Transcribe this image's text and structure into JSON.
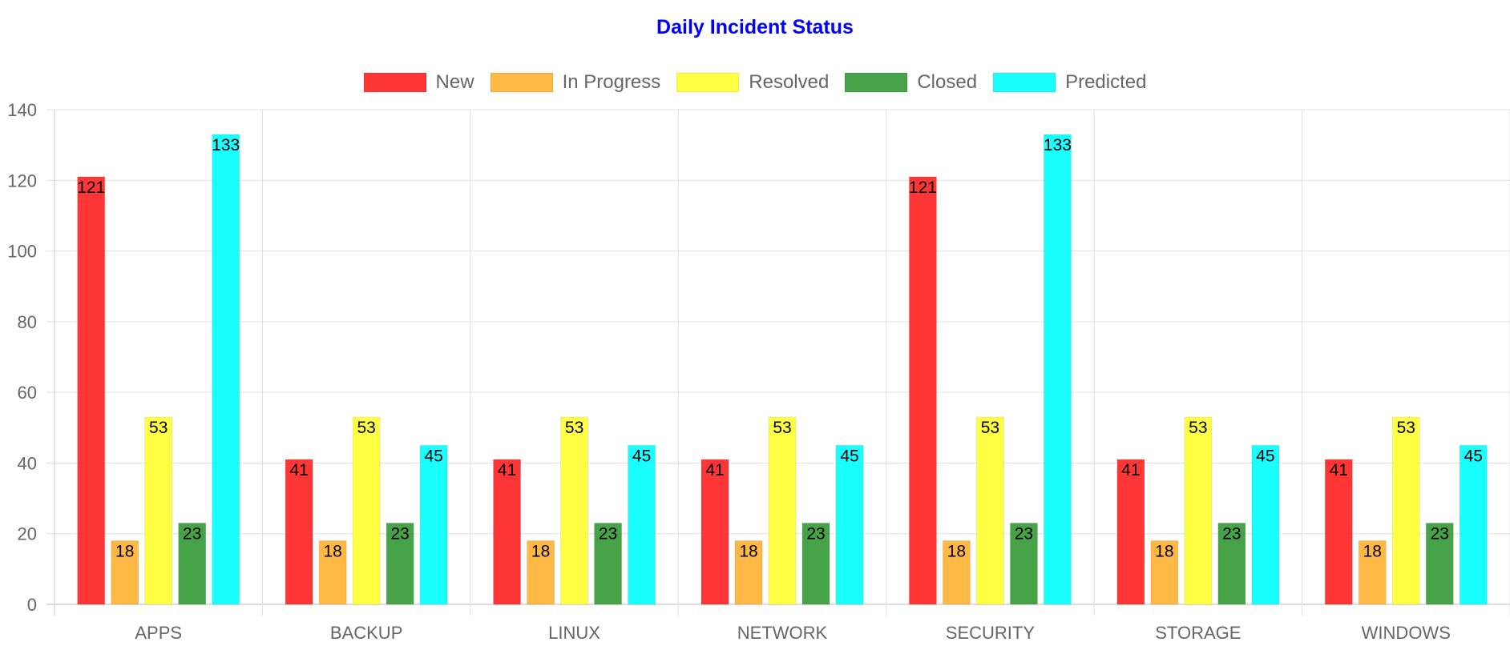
{
  "chart_data": {
    "type": "bar",
    "title": "Daily Incident Status",
    "xlabel": "",
    "ylabel": "",
    "categories": [
      "APPS",
      "BACKUP",
      "LINUX",
      "NETWORK",
      "SECURITY",
      "STORAGE",
      "WINDOWS"
    ],
    "ylim": [
      0,
      140
    ],
    "yticks": [
      0,
      20,
      40,
      60,
      80,
      100,
      120,
      140
    ],
    "grid": true,
    "legend_position": "top",
    "data_labels": true,
    "series": [
      {
        "name": "New",
        "color": "#ff2020",
        "values": [
          121,
          41,
          41,
          41,
          121,
          41,
          41
        ]
      },
      {
        "name": "In Progress",
        "color": "#ffb030",
        "values": [
          18,
          18,
          18,
          18,
          18,
          18,
          18
        ]
      },
      {
        "name": "Resolved",
        "color": "#ffff30",
        "values": [
          53,
          53,
          53,
          53,
          53,
          53,
          53
        ]
      },
      {
        "name": "Closed",
        "color": "#339933",
        "values": [
          23,
          23,
          23,
          23,
          23,
          23,
          23
        ]
      },
      {
        "name": "Predicted",
        "color": "#00ffff",
        "values": [
          133,
          45,
          45,
          45,
          133,
          45,
          45
        ]
      }
    ]
  }
}
